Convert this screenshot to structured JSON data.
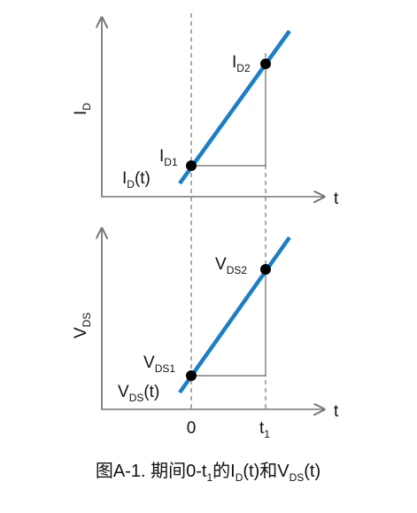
{
  "top": {
    "y_label": {
      "base": "I",
      "sub": "D"
    },
    "x_label": "t",
    "point_high": {
      "base": "I",
      "sub": "D2"
    },
    "point_low": {
      "base": "I",
      "sub": "D1"
    },
    "line_label": {
      "base": "I",
      "sub": "D",
      "suffix": "(t)"
    }
  },
  "bottom": {
    "y_label": {
      "base": "V",
      "sub": "DS"
    },
    "x_label": "t",
    "point_high": {
      "base": "V",
      "sub": "DS2"
    },
    "point_low": {
      "base": "V",
      "sub": "DS1"
    },
    "line_label": {
      "base": "V",
      "sub": "DS",
      "suffix": "(t)"
    },
    "tick_zero": "0",
    "tick_t1": {
      "base": "t",
      "sub": "1"
    }
  },
  "caption": [
    "图A-1. 期间0-t",
    "1",
    "的I",
    "D",
    "(t)和V",
    "DS",
    "(t)"
  ]
}
